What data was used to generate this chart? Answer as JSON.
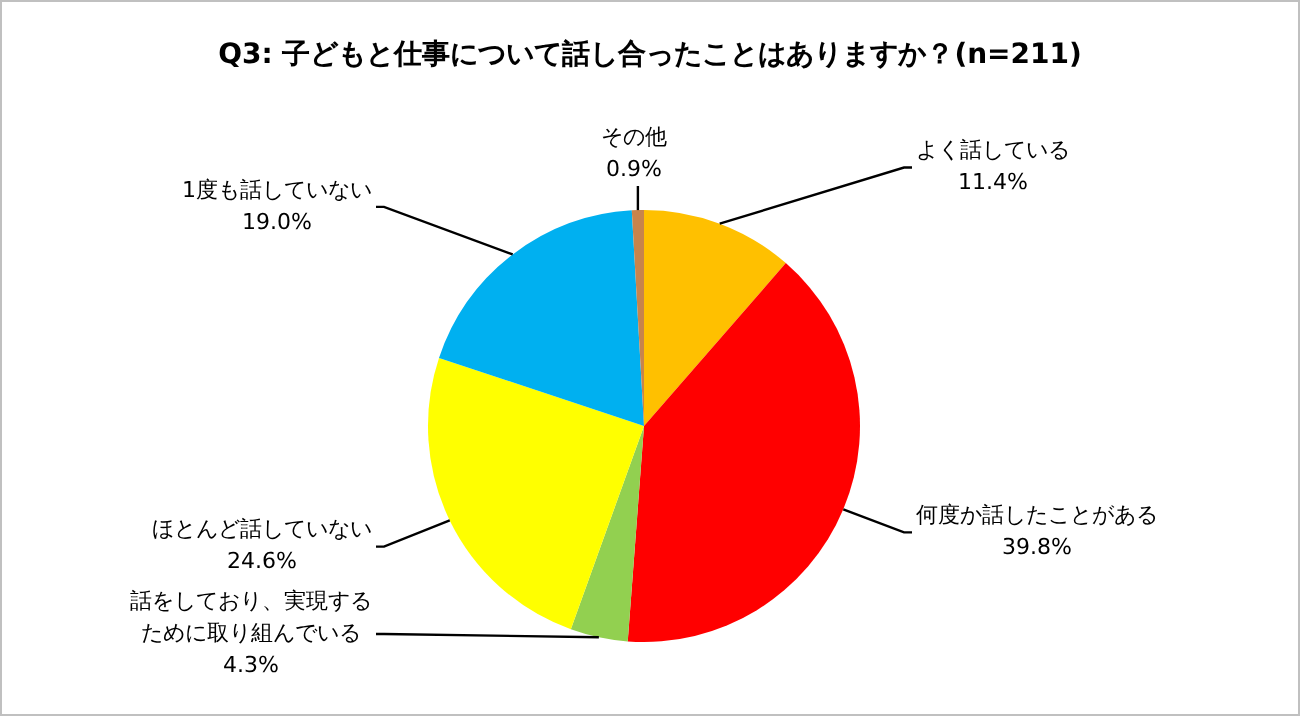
{
  "chart_data": {
    "type": "pie",
    "title": "Q3: 子どもと仕事について話し合ったことはありますか？(n=211)",
    "categories": [
      "よく話している",
      "何度か話したことがある",
      "話をしており、実現するために取り組んでいる",
      "ほとんど話していない",
      "1度も話していない",
      "その他"
    ],
    "values": [
      11.4,
      39.8,
      4.3,
      24.6,
      19.0,
      0.9
    ],
    "colors": [
      "#ffc000",
      "#ff0000",
      "#92d050",
      "#ffff00",
      "#00b0f0",
      "#c8844c"
    ],
    "value_labels": [
      "11.4%",
      "39.8%",
      "4.3%",
      "24.6%",
      "19.0%",
      "0.9%"
    ]
  }
}
